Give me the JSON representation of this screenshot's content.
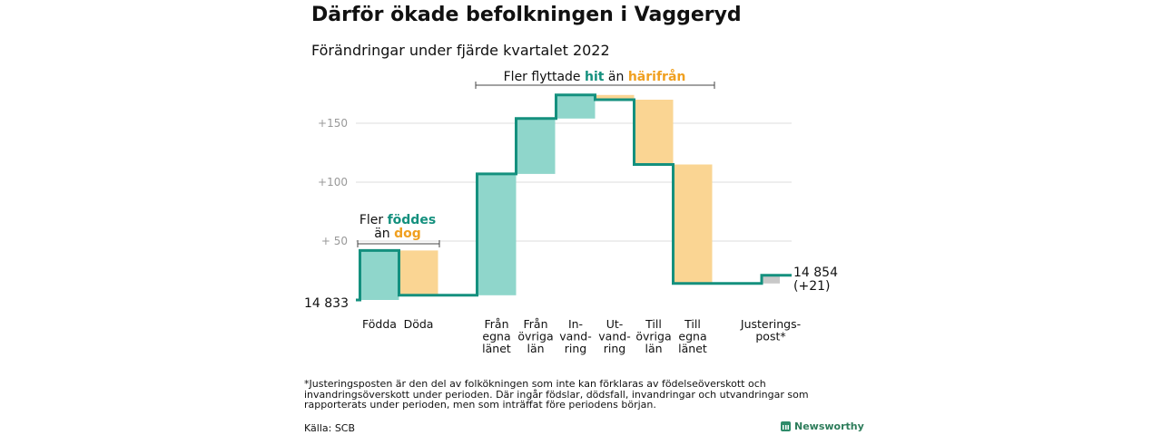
{
  "title": "Därför ökade befolkningen i Vaggeryd",
  "subtitle": "Förändringar under fjärde kvartalet 2022",
  "colors": {
    "increase": "#8fd6cb",
    "decrease": "#fad593",
    "adjustment": "#c8c8c8",
    "line": "#14907e",
    "teal_text": "#14907e",
    "orange_text": "#f0a020",
    "grid": "#dddddd",
    "tick": "#999999"
  },
  "chart_data": {
    "type": "bar",
    "subtype": "waterfall",
    "title": "Därför ökade befolkningen i Vaggeryd",
    "subtitle": "Förändringar under fjärde kvartalet 2022",
    "start_value": 14833,
    "start_label": "14 833",
    "end_label": "14 854",
    "end_change_label": "(+21)",
    "y_baseline": 0,
    "ylim": [
      -5,
      175
    ],
    "yticks": [
      {
        "value": 50,
        "label": "+ 50"
      },
      {
        "value": 100,
        "label": "+100"
      },
      {
        "value": 150,
        "label": "+150"
      }
    ],
    "categories": [
      {
        "label": [
          "Födda"
        ],
        "change": 42,
        "kind": "increase"
      },
      {
        "label": [
          "Döda"
        ],
        "change": -38,
        "kind": "decrease"
      },
      {
        "label": [
          "Från",
          "egna",
          "länet"
        ],
        "change": 103,
        "kind": "increase"
      },
      {
        "label": [
          "Från",
          "övriga",
          "län"
        ],
        "change": 47,
        "kind": "increase"
      },
      {
        "label": [
          "In-",
          "vand-",
          "ring"
        ],
        "change": 20,
        "kind": "increase"
      },
      {
        "label": [
          "Ut-",
          "vand-",
          "ring"
        ],
        "change": -4,
        "kind": "decrease"
      },
      {
        "label": [
          "Till",
          "övriga",
          "län"
        ],
        "change": -55,
        "kind": "decrease"
      },
      {
        "label": [
          "Till",
          "egna",
          "länet"
        ],
        "change": -101,
        "kind": "decrease"
      },
      {
        "label": [
          "Justerings-",
          "post*"
        ],
        "change": 7,
        "kind": "adjustment"
      }
    ],
    "annotations": {
      "births": {
        "text1": "Fler",
        "bold1": "föddes",
        "text2": "än",
        "bold2": "dog"
      },
      "migration": {
        "text1": "Fler flyttade",
        "bold1": "hit",
        "text2": "än",
        "bold2": "härifrån"
      }
    }
  },
  "footnote": "*Justeringsposten är den del av folkökningen som inte kan förklaras av födelseöverskott och invandringsöverskott under perioden. Där ingår födslar, dödsfall, invandringar och utvandringar som rapporterats under perioden, men som inträffat före periodens början.",
  "source": "Källa: SCB",
  "brand": "Newsworthy"
}
